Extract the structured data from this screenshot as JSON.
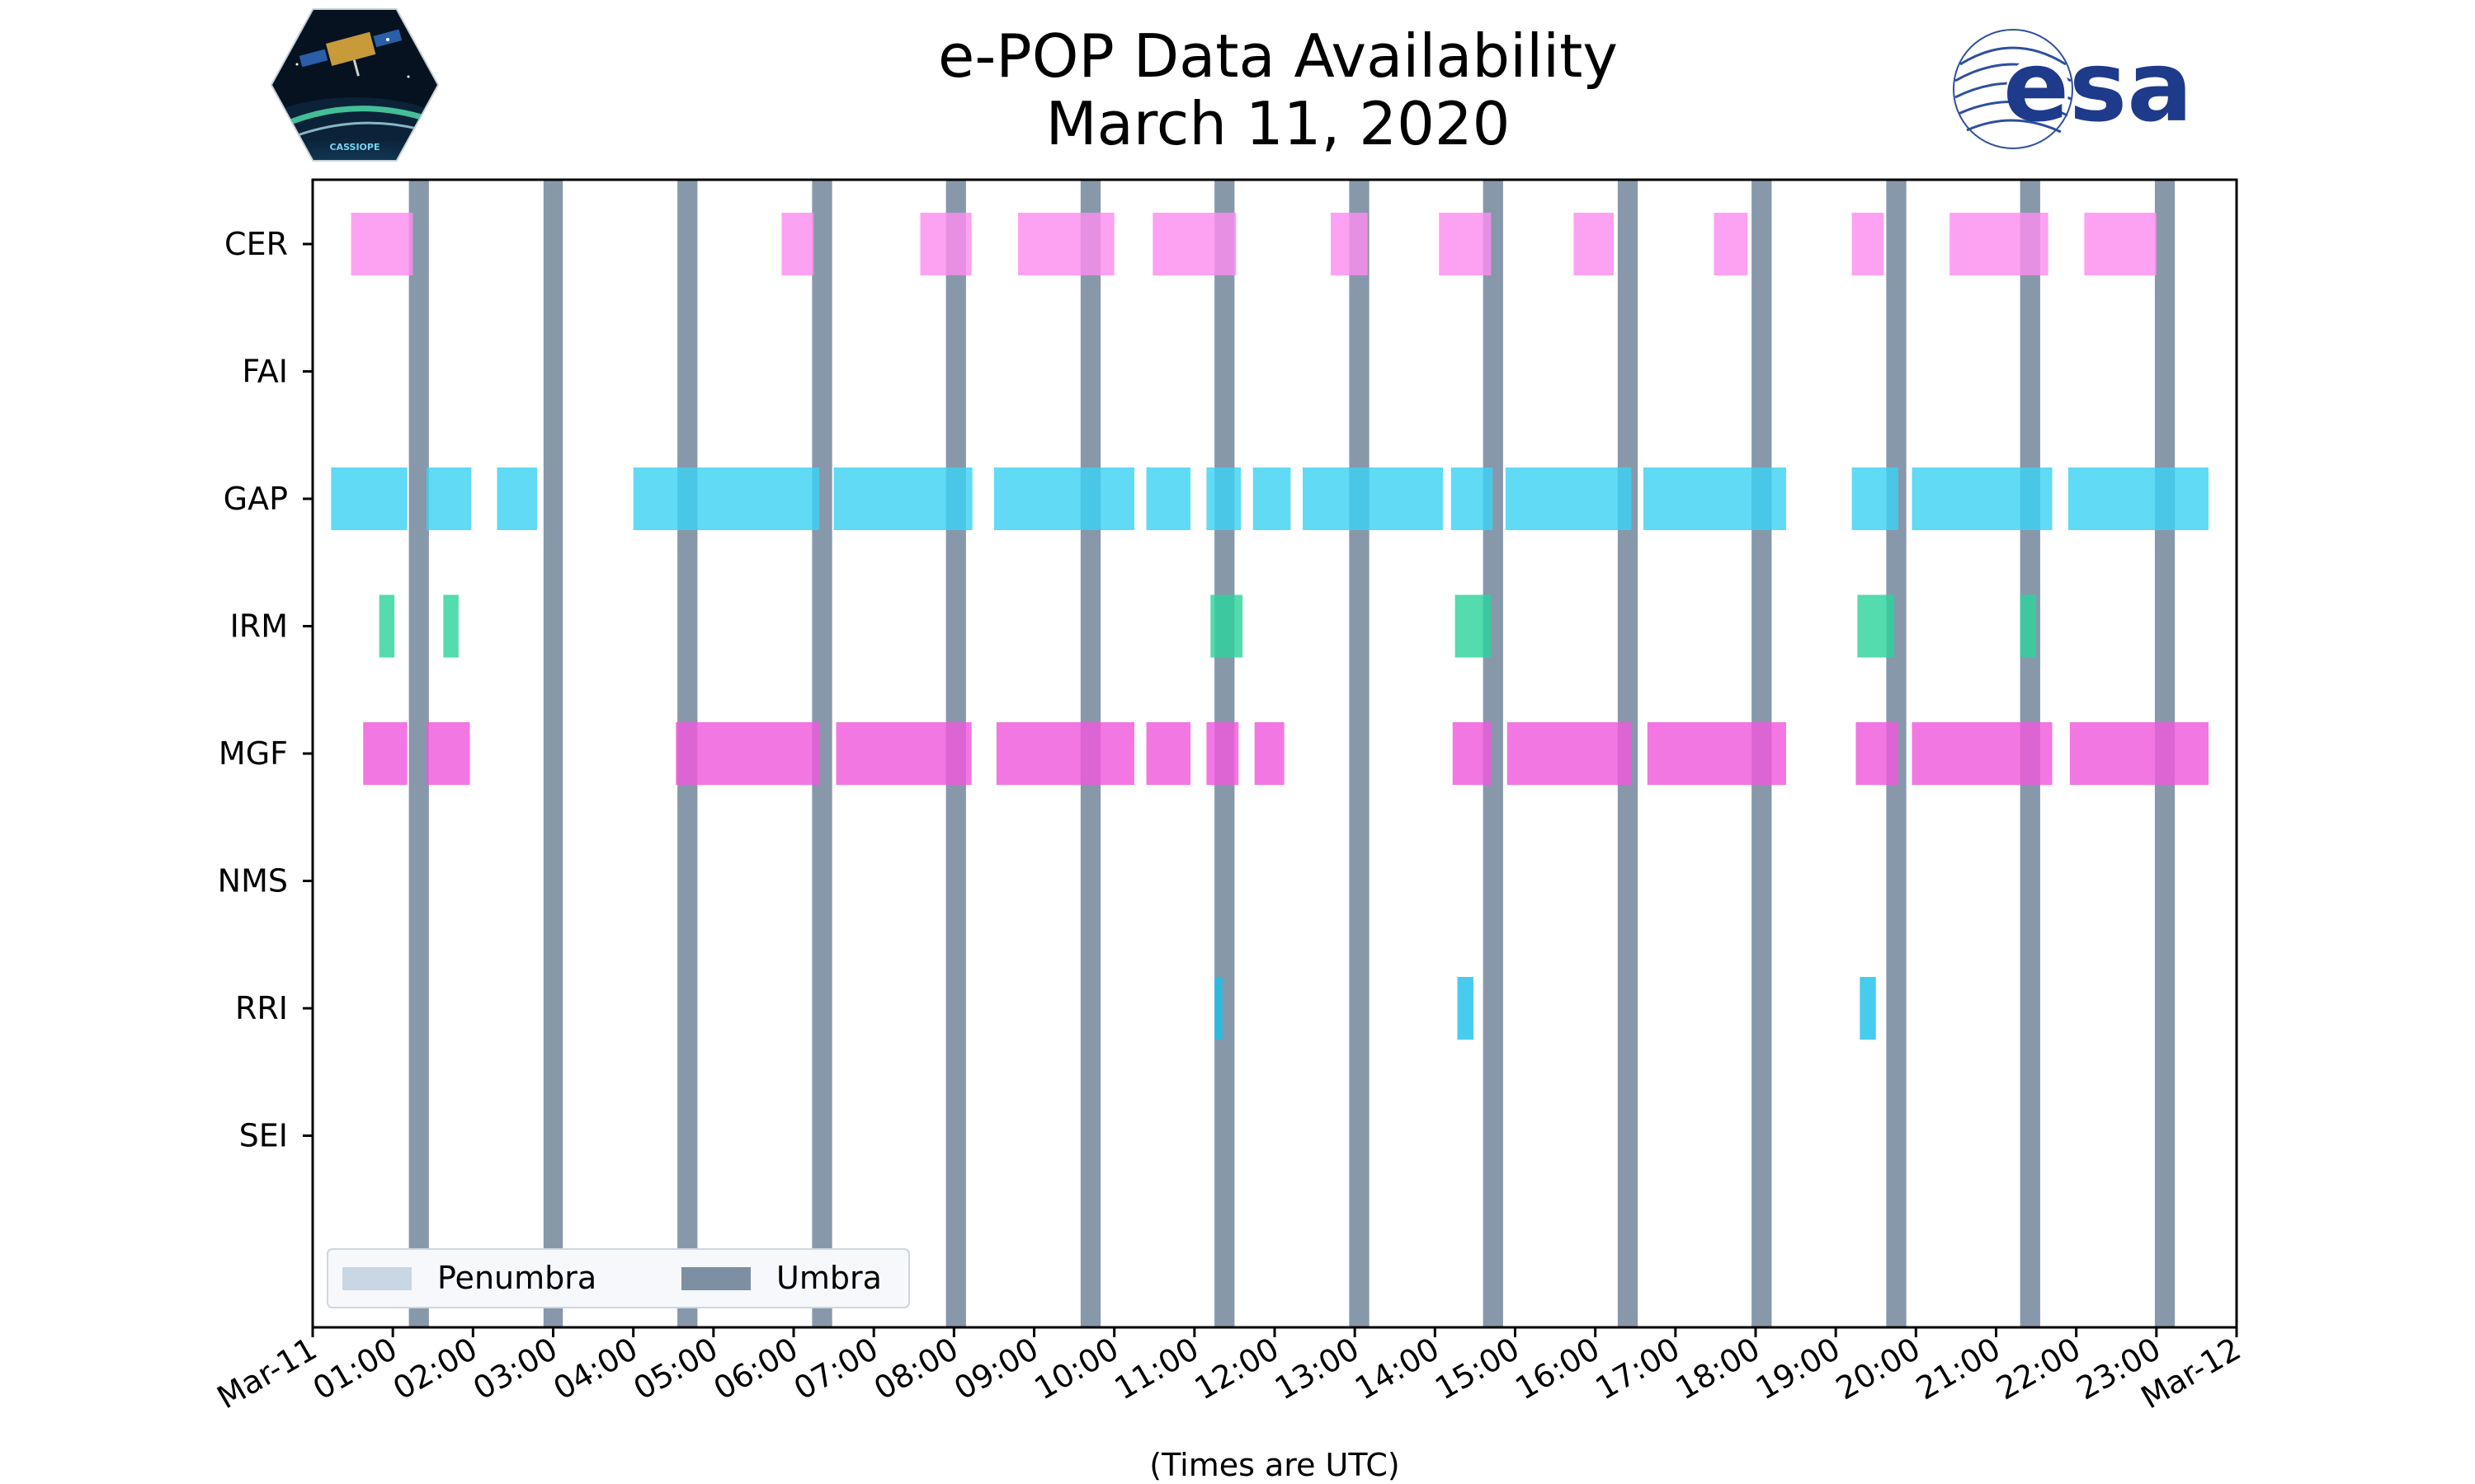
{
  "chart_data": {
    "type": "gantt",
    "title": "e-POP Data Availability",
    "subtitle": "March 11, 2020",
    "xlabel": "(Times are UTC)",
    "x_unit": "hours UTC",
    "xlim": [
      0,
      24
    ],
    "x_ticks": [
      {
        "hour": 0,
        "label": "Mar-11"
      },
      {
        "hour": 1,
        "label": "01:00"
      },
      {
        "hour": 2,
        "label": "02:00"
      },
      {
        "hour": 3,
        "label": "03:00"
      },
      {
        "hour": 4,
        "label": "04:00"
      },
      {
        "hour": 5,
        "label": "05:00"
      },
      {
        "hour": 6,
        "label": "06:00"
      },
      {
        "hour": 7,
        "label": "07:00"
      },
      {
        "hour": 8,
        "label": "08:00"
      },
      {
        "hour": 9,
        "label": "09:00"
      },
      {
        "hour": 10,
        "label": "10:00"
      },
      {
        "hour": 11,
        "label": "11:00"
      },
      {
        "hour": 12,
        "label": "12:00"
      },
      {
        "hour": 13,
        "label": "13:00"
      },
      {
        "hour": 14,
        "label": "14:00"
      },
      {
        "hour": 15,
        "label": "15:00"
      },
      {
        "hour": 16,
        "label": "16:00"
      },
      {
        "hour": 17,
        "label": "17:00"
      },
      {
        "hour": 18,
        "label": "18:00"
      },
      {
        "hour": 19,
        "label": "19:00"
      },
      {
        "hour": 20,
        "label": "20:00"
      },
      {
        "hour": 21,
        "label": "21:00"
      },
      {
        "hour": 22,
        "label": "22:00"
      },
      {
        "hour": 23,
        "label": "23:00"
      },
      {
        "hour": 24,
        "label": "Mar-12"
      }
    ],
    "instruments": [
      "CER",
      "FAI",
      "GAP",
      "IRM",
      "MGF",
      "NMS",
      "RRI",
      "SEI"
    ],
    "series": [
      {
        "name": "CER",
        "color": "#fc8eef",
        "intervals": [
          [
            0.48,
            1.25
          ],
          [
            5.85,
            6.25
          ],
          [
            7.58,
            8.22
          ],
          [
            8.8,
            10.0
          ],
          [
            10.48,
            11.52
          ],
          [
            12.7,
            13.16
          ],
          [
            14.05,
            14.7
          ],
          [
            15.73,
            16.23
          ],
          [
            17.48,
            17.9
          ],
          [
            19.2,
            19.6
          ],
          [
            20.42,
            21.65
          ],
          [
            22.1,
            23.0
          ]
        ]
      },
      {
        "name": "FAI",
        "color": "#9a9aff",
        "intervals": []
      },
      {
        "name": "GAP",
        "color": "#3dd2f3",
        "intervals": [
          [
            0.23,
            1.18
          ],
          [
            1.42,
            1.98
          ],
          [
            2.3,
            2.8
          ],
          [
            4.0,
            6.32
          ],
          [
            6.5,
            8.23
          ],
          [
            8.5,
            10.25
          ],
          [
            10.4,
            10.95
          ],
          [
            11.15,
            11.58
          ],
          [
            11.73,
            12.2
          ],
          [
            12.35,
            14.1
          ],
          [
            14.2,
            14.72
          ],
          [
            14.88,
            16.45
          ],
          [
            16.6,
            18.38
          ],
          [
            19.2,
            19.78
          ],
          [
            19.95,
            21.7
          ],
          [
            21.9,
            23.65
          ]
        ]
      },
      {
        "name": "IRM",
        "color": "#2ed39c",
        "intervals": [
          [
            0.83,
            1.02
          ],
          [
            1.63,
            1.82
          ],
          [
            11.2,
            11.6
          ],
          [
            14.25,
            14.7
          ],
          [
            19.27,
            19.73
          ],
          [
            21.3,
            21.5
          ]
        ]
      },
      {
        "name": "MGF",
        "color": "#ef59dc",
        "intervals": [
          [
            0.63,
            1.18
          ],
          [
            1.42,
            1.96
          ],
          [
            4.53,
            6.32
          ],
          [
            6.53,
            8.22
          ],
          [
            8.53,
            10.25
          ],
          [
            10.4,
            10.95
          ],
          [
            11.15,
            11.55
          ],
          [
            11.75,
            12.12
          ],
          [
            14.22,
            14.7
          ],
          [
            14.9,
            16.45
          ],
          [
            16.65,
            18.38
          ],
          [
            19.25,
            19.78
          ],
          [
            19.95,
            21.7
          ],
          [
            21.92,
            23.65
          ]
        ]
      },
      {
        "name": "NMS",
        "color": "#7a7a7a",
        "intervals": []
      },
      {
        "name": "RRI",
        "color": "#1ec0ea",
        "intervals": [
          [
            11.25,
            11.35
          ],
          [
            14.28,
            14.48
          ],
          [
            19.3,
            19.5
          ]
        ]
      },
      {
        "name": "SEI",
        "color": "#b0b0b0",
        "intervals": []
      }
    ],
    "umbra": [
      [
        1.2,
        1.45
      ],
      [
        2.88,
        3.12
      ],
      [
        4.55,
        4.8
      ],
      [
        6.23,
        6.48
      ],
      [
        7.9,
        8.15
      ],
      [
        9.58,
        9.83
      ],
      [
        11.25,
        11.5
      ],
      [
        12.93,
        13.18
      ],
      [
        14.6,
        14.85
      ],
      [
        16.28,
        16.53
      ],
      [
        17.95,
        18.2
      ],
      [
        19.63,
        19.88
      ],
      [
        21.3,
        21.55
      ],
      [
        22.98,
        23.23
      ]
    ],
    "penumbra": [],
    "legend": {
      "position": "lower-left",
      "items": [
        {
          "label": "Penumbra",
          "color": "#c9d6e4"
        },
        {
          "label": "Umbra",
          "color": "#7d8fa3"
        }
      ]
    },
    "umbra_color": "#7d8fa3"
  },
  "logos": {
    "left_icon": "cassiope-mission-patch-icon",
    "left_text": "CASSIOPE",
    "right_icon": "esa-logo-icon",
    "right_text": "esa"
  }
}
